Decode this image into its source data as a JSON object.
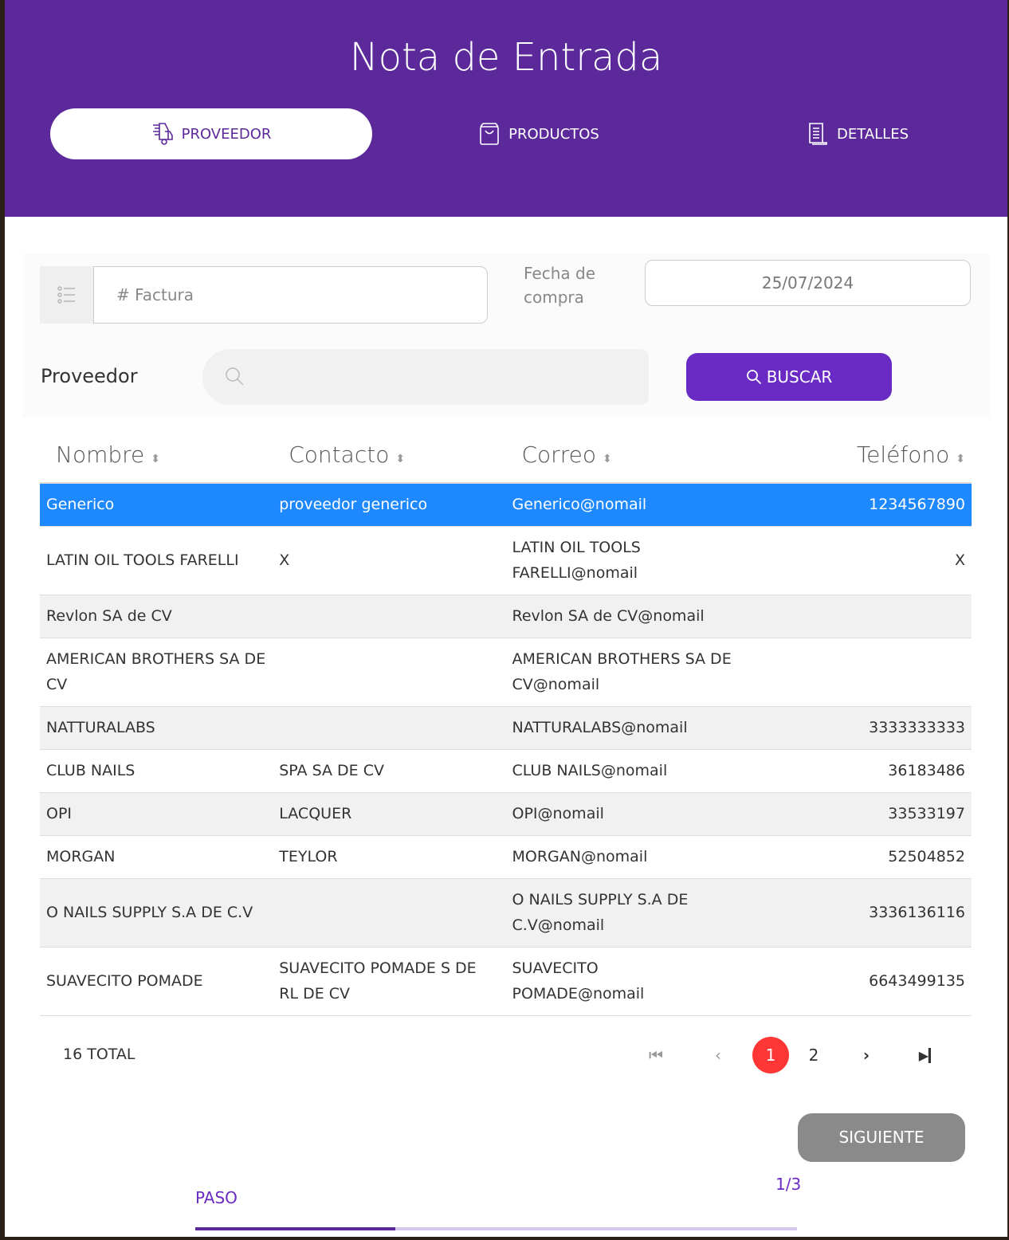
{
  "header": {
    "title": "Nota de Entrada",
    "tabs": [
      {
        "label": "PROVEEDOR",
        "icon": "truck-icon",
        "active": true
      },
      {
        "label": "PRODUCTOS",
        "icon": "shopping-bag-icon",
        "active": false
      },
      {
        "label": "DETALLES",
        "icon": "receipt-icon",
        "active": false
      }
    ]
  },
  "form": {
    "factura_placeholder": "# Factura",
    "fecha_label": "Fecha de compra",
    "fecha_value": "25/07/2024",
    "proveedor_label": "Proveedor",
    "proveedor_placeholder": "",
    "buscar_label": "BUSCAR"
  },
  "table": {
    "columns": [
      "Nombre",
      "Contacto",
      "Correo",
      "Teléfono"
    ],
    "rows": [
      [
        "Generico",
        "proveedor generico",
        "Generico@nomail",
        "1234567890"
      ],
      [
        "LATIN OIL TOOLS FARELLI",
        "X",
        "LATIN OIL TOOLS FARELLI@nomail",
        "X"
      ],
      [
        "Revlon SA de CV",
        "",
        "Revlon SA de CV@nomail",
        ""
      ],
      [
        "AMERICAN BROTHERS SA DE CV",
        "",
        "AMERICAN BROTHERS SA DE CV@nomail",
        ""
      ],
      [
        "NATTURALABS",
        "",
        "NATTURALABS@nomail",
        "3333333333"
      ],
      [
        "CLUB NAILS",
        "SPA SA DE CV",
        "CLUB NAILS@nomail",
        "36183486"
      ],
      [
        "OPI",
        "LACQUER",
        "OPI@nomail",
        "33533197"
      ],
      [
        "MORGAN",
        "TEYLOR",
        "MORGAN@nomail",
        "52504852"
      ],
      [
        "O NAILS SUPPLY S.A DE C.V",
        "",
        "O NAILS SUPPLY S.A DE C.V@nomail",
        "3336136116"
      ],
      [
        "SUAVECITO POMADE",
        "SUAVECITO POMADE S DE RL DE CV",
        "SUAVECITO POMADE@nomail",
        "6643499135"
      ]
    ],
    "selected_row": 0
  },
  "pagination": {
    "total": "16 TOTAL",
    "pages": [
      "1",
      "2"
    ],
    "current": "1"
  },
  "footer": {
    "next_label": "SIGUIENTE",
    "step": "1/3",
    "paso_label": "PASO",
    "progress": 0.333
  },
  "colors": {
    "header": "#5c299b",
    "selected_row": "#1e88ff",
    "current_page": "#ff3636",
    "button": "#6a2bc4"
  }
}
